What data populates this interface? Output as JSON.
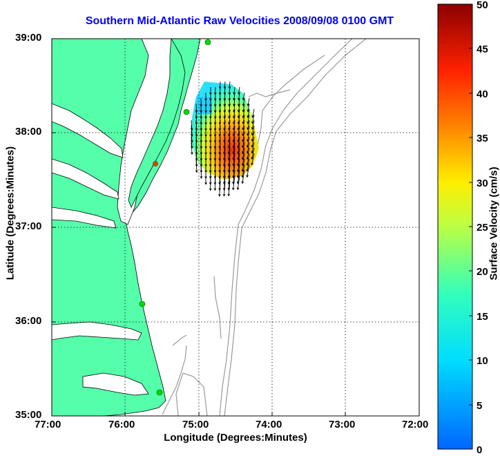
{
  "title": "Southern Mid-Atlantic Raw Velocities 2008/09/08 0100 GMT",
  "axes": {
    "xlabel": "Longitude (Degrees:Minutes)",
    "ylabel": "Latitude (Degrees:Minutes)",
    "xticks": [
      "77:00",
      "76:00",
      "75:00",
      "74:00",
      "73:00",
      "72:00"
    ],
    "yticks": [
      "39:00",
      "38:00",
      "37:00",
      "36:00",
      "35:00"
    ]
  },
  "colorbar": {
    "label": "Surface Velocity (cm/s)",
    "ticks": [
      "0",
      "5",
      "10",
      "15",
      "20",
      "25",
      "30",
      "35",
      "40",
      "45",
      "50"
    ],
    "range": [
      0,
      50
    ]
  },
  "colors": {
    "land": "#55ffaa",
    "water": "#ffffff",
    "coast": "#000000",
    "bathymetry": "#999999",
    "title": "#0000ff",
    "station": "#00dd00",
    "station_alt": "#ff3300"
  },
  "chart_data": {
    "type": "map",
    "title": "Southern Mid-Atlantic Raw Velocities 2008/09/08 0100 GMT",
    "xlabel": "Longitude (Degrees:Minutes)",
    "ylabel": "Latitude (Degrees:Minutes)",
    "xlim": [
      -77,
      -72
    ],
    "ylim": [
      35,
      39
    ],
    "grid": true,
    "colorbar": {
      "label": "Surface Velocity (cm/s)",
      "range": [
        0,
        50
      ]
    },
    "stations": [
      {
        "lon": -74.88,
        "lat": 38.96,
        "color": "green"
      },
      {
        "lon": -75.15,
        "lat": 38.22,
        "color": "green"
      },
      {
        "lon": -75.45,
        "lat": 37.67,
        "color": "red"
      },
      {
        "lon": -75.72,
        "lat": 36.18,
        "color": "green"
      },
      {
        "lon": -75.52,
        "lat": 35.25,
        "color": "green"
      }
    ],
    "velocity_field": {
      "region": {
        "lon": [
          -75.2,
          -74.0
        ],
        "lat": [
          37.5,
          38.6
        ]
      },
      "speed_range_cm_s": [
        10,
        45
      ],
      "direction": "mostly south / south-southwest"
    }
  }
}
